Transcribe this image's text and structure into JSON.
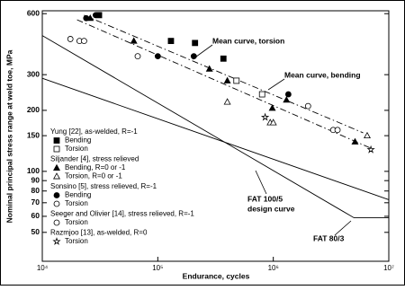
{
  "chart_data": {
    "type": "scatter",
    "xlabel": "Endurance, cycles",
    "ylabel": "Nominal principal stress range at weld toe, MPa",
    "log": true,
    "xlim": [
      10000,
      10000000
    ],
    "ylim": [
      36,
      620
    ],
    "xticks": [
      {
        "value": 10000,
        "label": "10⁴"
      },
      {
        "value": 100000,
        "label": "10⁵"
      },
      {
        "value": 1000000,
        "label": "10⁶"
      },
      {
        "value": 10000000,
        "label": "10⁷"
      }
    ],
    "yticks": [
      600,
      300,
      200,
      150,
      100,
      90,
      80,
      70,
      60,
      50
    ],
    "groups": [
      {
        "label": "Yung [22], as-welded, R=-1",
        "series": [
          {
            "name": "Bending",
            "marker": "square",
            "filled": true,
            "x": [
              130000,
              210000,
              370000,
              31000
            ],
            "values": [
              440,
              430,
              360,
              590
            ]
          },
          {
            "name": "Torsion",
            "marker": "square",
            "filled": false,
            "x": [
              480000,
              800000
            ],
            "values": [
              280,
              240
            ]
          }
        ]
      },
      {
        "label": "Siljander [4], stress relieved",
        "series": [
          {
            "name": "Bending, R=0 or -1",
            "marker": "triangle",
            "filled": true,
            "x": [
              26000,
              62000,
              280000,
              400000,
              980000,
              1300000,
              5100000
            ],
            "values": [
              570,
              440,
              320,
              280,
              205,
              225,
              140
            ]
          },
          {
            "name": "Torsion, R=0 or -1",
            "marker": "triangle",
            "filled": false,
            "x": [
              400000,
              940000,
              1000000,
              6500000
            ],
            "values": [
              220,
              174,
              174,
              150
            ]
          }
        ]
      },
      {
        "label": "Sonsino [5], stress relieved, R=-1",
        "series": [
          {
            "name": "Bending",
            "marker": "circle",
            "filled": true,
            "x": [
              24000,
              29000,
              100000,
              205000,
              1350000
            ],
            "values": [
              570,
              590,
              370,
              370,
              240
            ]
          },
          {
            "name": "Torsion",
            "marker": "circle",
            "filled": false,
            "x": [
              67000,
              2000000
            ],
            "values": [
              370,
              210
            ]
          }
        ]
      },
      {
        "label": "Seeger and Olivier [14], stress relieved, R=-1",
        "series": [
          {
            "name": "Torsion",
            "marker": "circle",
            "filled": false,
            "x": [
              17500,
              21000,
              23000,
              3300000,
              3600000
            ],
            "values": [
              450,
              440,
              440,
              160,
              160
            ]
          }
        ]
      },
      {
        "label": "Razmjoo [13], as-welded, R=0",
        "series": [
          {
            "name": "Torsion",
            "marker": "star",
            "filled": false,
            "x": [
              850000,
              7000000
            ],
            "values": [
              185,
              128
            ]
          }
        ]
      }
    ],
    "lines": [
      {
        "labels": [
          "Mean curve, torsion"
        ],
        "style": "dashdot",
        "x": [
          23000,
          6000000
        ],
        "values": [
          590,
          155
        ]
      },
      {
        "labels": [
          "Mean curve, bending"
        ],
        "style": "dashdot",
        "x": [
          20000,
          7000000
        ],
        "values": [
          560,
          130
        ]
      },
      {
        "labels": [
          "FAT 100/5",
          "design curve"
        ],
        "style": "solid",
        "x": [
          10000,
          10000000
        ],
        "values": [
          288,
          72.5
        ]
      },
      {
        "labels": [
          "FAT 80/3"
        ],
        "style": "solid",
        "x": [
          10000,
          5000000,
          10000000
        ],
        "values": [
          468,
          59,
          59
        ]
      }
    ]
  }
}
